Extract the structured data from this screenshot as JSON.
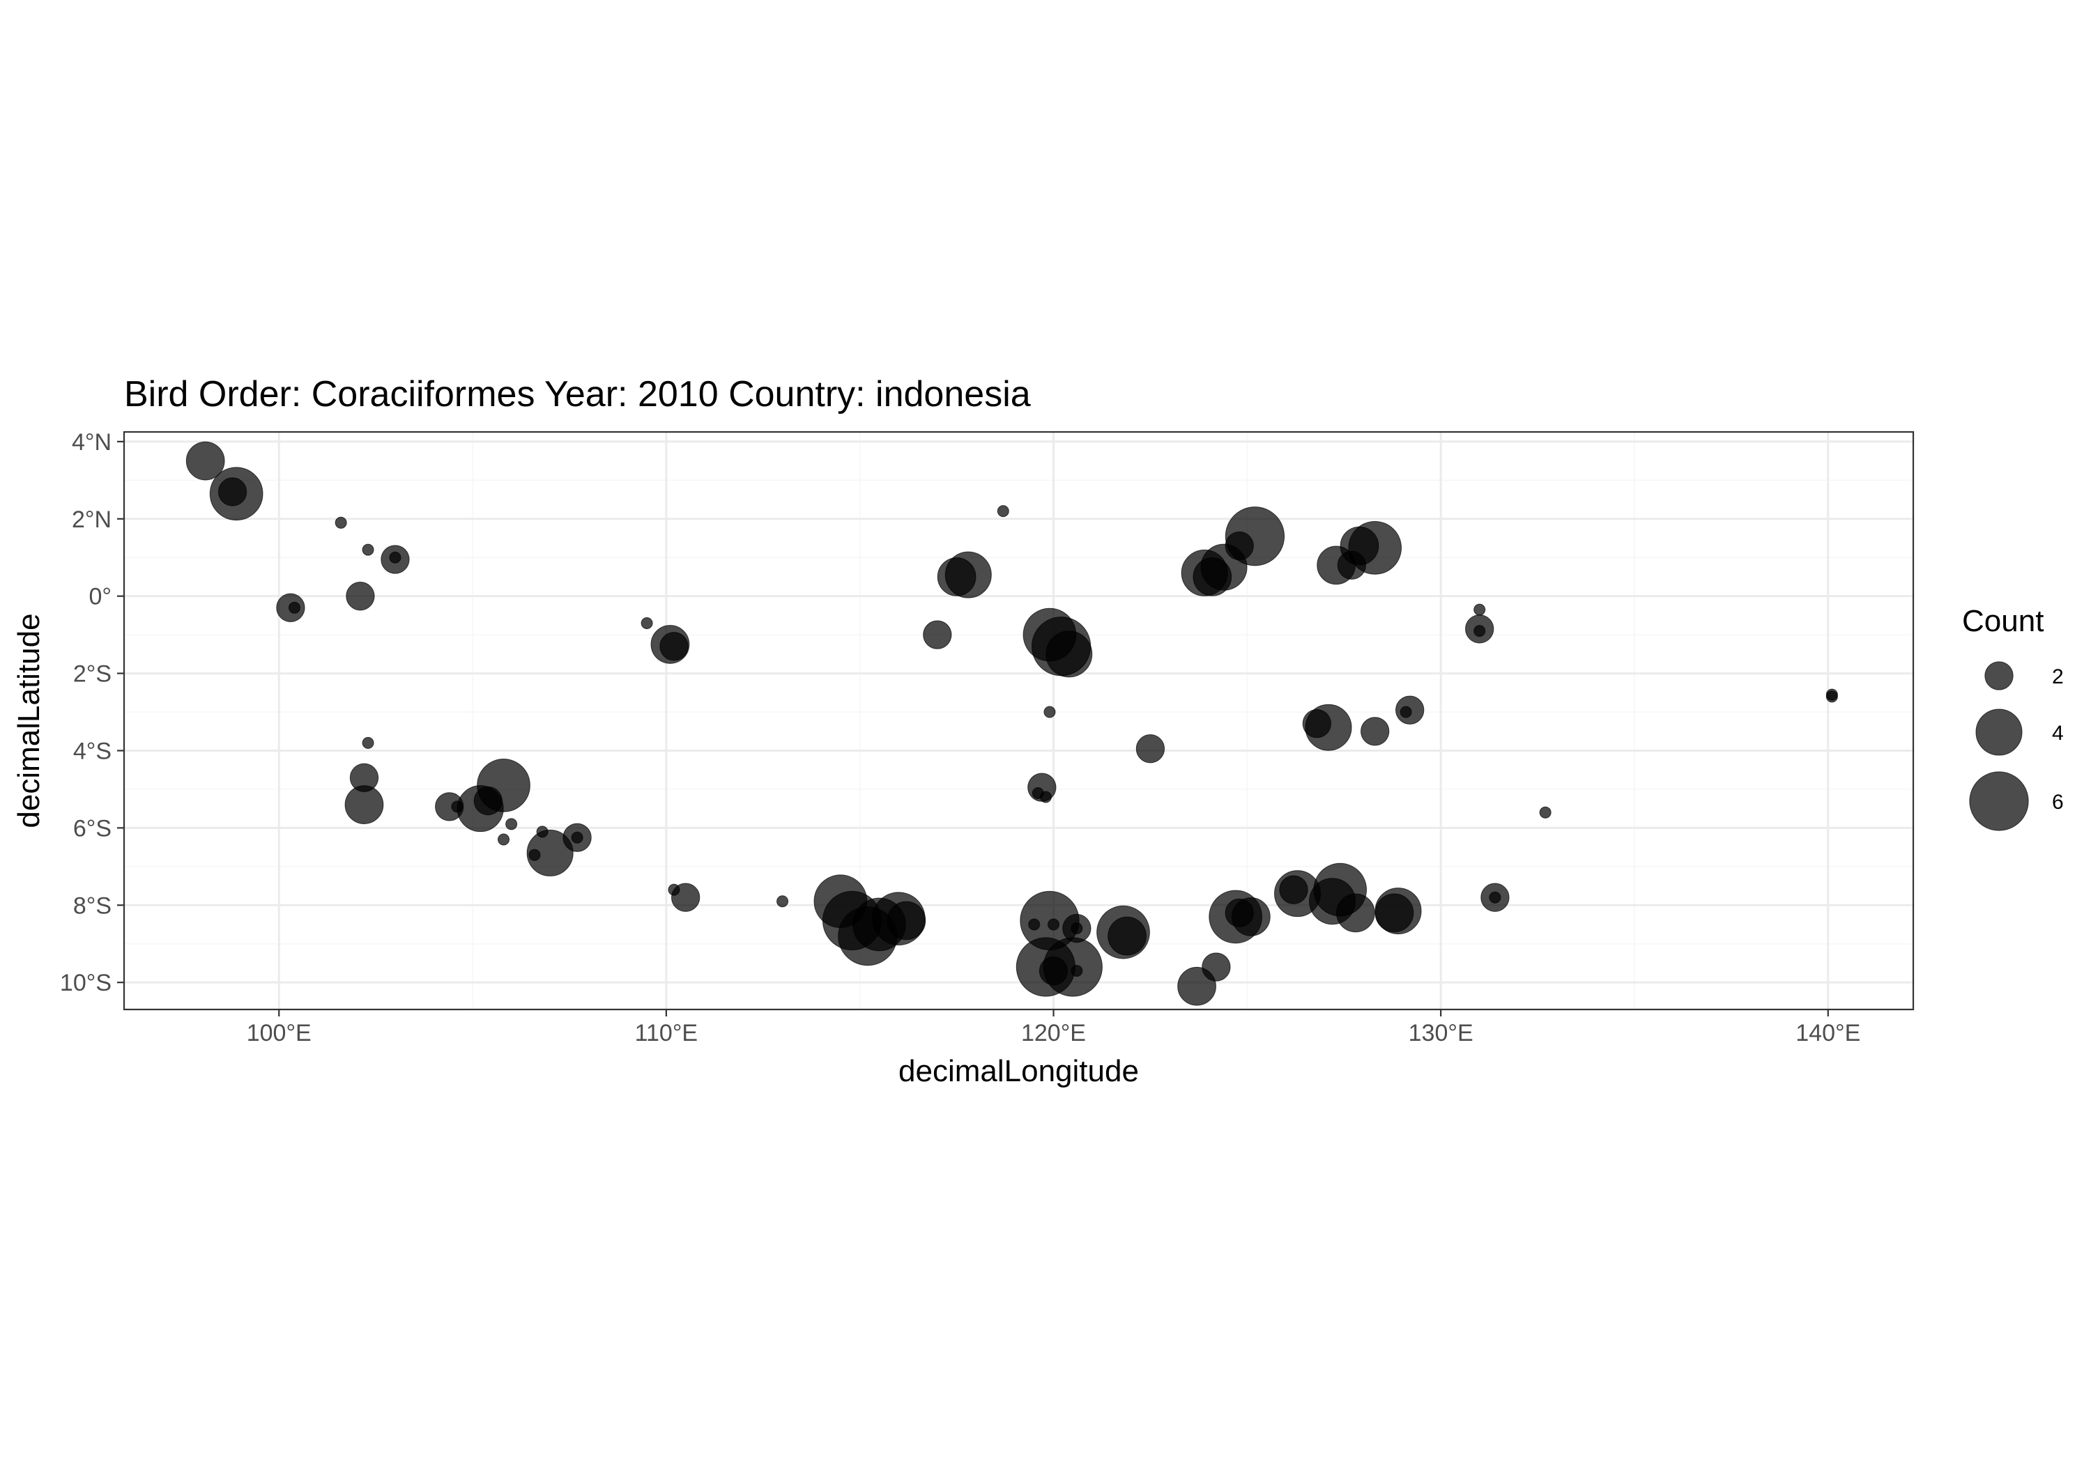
{
  "chart_data": {
    "type": "scatter",
    "title": "Bird Order: Coraciiformes Year: 2010 Country: indonesia",
    "xlabel": "decimalLongitude",
    "ylabel": "decimalLatitude",
    "xlim": [
      96,
      142.2
    ],
    "ylim": [
      -10.7,
      4.25
    ],
    "x_ticks": [
      {
        "value": 100,
        "label": "100°E"
      },
      {
        "value": 110,
        "label": "110°E"
      },
      {
        "value": 120,
        "label": "120°E"
      },
      {
        "value": 130,
        "label": "130°E"
      },
      {
        "value": 140,
        "label": "140°E"
      }
    ],
    "y_ticks": [
      {
        "value": 4,
        "label": "4°N"
      },
      {
        "value": 2,
        "label": "2°N"
      },
      {
        "value": 0,
        "label": "0°"
      },
      {
        "value": -2,
        "label": "2°S"
      },
      {
        "value": -4,
        "label": "4°S"
      },
      {
        "value": -6,
        "label": "6°S"
      },
      {
        "value": -8,
        "label": "8°S"
      },
      {
        "value": -10,
        "label": "10°S"
      }
    ],
    "grid": true,
    "point_color": "#000000",
    "point_opacity": 0.7,
    "legend": {
      "title": "Count",
      "position": "right",
      "entries": [
        {
          "value": 2,
          "label": "2"
        },
        {
          "value": 4,
          "label": "4"
        },
        {
          "value": 6,
          "label": "6"
        }
      ]
    },
    "size_domain": [
      1,
      7
    ],
    "points": [
      {
        "x": 98.1,
        "y": 3.5,
        "count": 3
      },
      {
        "x": 98.9,
        "y": 2.65,
        "count": 5
      },
      {
        "x": 98.8,
        "y": 2.7,
        "count": 2
      },
      {
        "x": 101.6,
        "y": 1.9,
        "count": 1
      },
      {
        "x": 102.3,
        "y": 1.2,
        "count": 1
      },
      {
        "x": 103.0,
        "y": 0.95,
        "count": 2
      },
      {
        "x": 103.0,
        "y": 1.0,
        "count": 1
      },
      {
        "x": 100.3,
        "y": -0.3,
        "count": 2
      },
      {
        "x": 100.4,
        "y": -0.3,
        "count": 1
      },
      {
        "x": 102.1,
        "y": 0.0,
        "count": 2
      },
      {
        "x": 102.3,
        "y": -3.8,
        "count": 1
      },
      {
        "x": 102.2,
        "y": -4.7,
        "count": 2
      },
      {
        "x": 102.2,
        "y": -5.4,
        "count": 3
      },
      {
        "x": 104.4,
        "y": -5.45,
        "count": 2
      },
      {
        "x": 104.6,
        "y": -5.45,
        "count": 1
      },
      {
        "x": 105.2,
        "y": -5.5,
        "count": 4
      },
      {
        "x": 105.4,
        "y": -5.3,
        "count": 2
      },
      {
        "x": 105.8,
        "y": -4.9,
        "count": 5
      },
      {
        "x": 106.0,
        "y": -5.9,
        "count": 1
      },
      {
        "x": 105.8,
        "y": -6.3,
        "count": 1
      },
      {
        "x": 106.6,
        "y": -6.7,
        "count": 1
      },
      {
        "x": 106.8,
        "y": -6.1,
        "count": 1
      },
      {
        "x": 107.0,
        "y": -6.65,
        "count": 4
      },
      {
        "x": 107.7,
        "y": -6.25,
        "count": 2
      },
      {
        "x": 107.7,
        "y": -6.25,
        "count": 1
      },
      {
        "x": 109.5,
        "y": -0.7,
        "count": 1
      },
      {
        "x": 110.1,
        "y": -1.25,
        "count": 3
      },
      {
        "x": 110.2,
        "y": -1.3,
        "count": 2
      },
      {
        "x": 110.2,
        "y": -7.6,
        "count": 1
      },
      {
        "x": 110.5,
        "y": -7.8,
        "count": 2
      },
      {
        "x": 113.0,
        "y": -7.9,
        "count": 1
      },
      {
        "x": 114.5,
        "y": -7.9,
        "count": 5
      },
      {
        "x": 114.8,
        "y": -8.4,
        "count": 6
      },
      {
        "x": 115.2,
        "y": -8.8,
        "count": 6
      },
      {
        "x": 115.5,
        "y": -8.5,
        "count": 5
      },
      {
        "x": 116.0,
        "y": -8.35,
        "count": 5
      },
      {
        "x": 116.2,
        "y": -8.4,
        "count": 3
      },
      {
        "x": 117.0,
        "y": -1.0,
        "count": 2
      },
      {
        "x": 117.5,
        "y": 0.5,
        "count": 3
      },
      {
        "x": 117.8,
        "y": 0.55,
        "count": 4
      },
      {
        "x": 118.7,
        "y": 2.2,
        "count": 1
      },
      {
        "x": 119.9,
        "y": -1.0,
        "count": 5
      },
      {
        "x": 120.2,
        "y": -1.3,
        "count": 6
      },
      {
        "x": 120.4,
        "y": -1.5,
        "count": 4
      },
      {
        "x": 119.9,
        "y": -3.0,
        "count": 1
      },
      {
        "x": 119.7,
        "y": -4.95,
        "count": 2
      },
      {
        "x": 119.6,
        "y": -5.1,
        "count": 1
      },
      {
        "x": 119.8,
        "y": -5.2,
        "count": 1
      },
      {
        "x": 119.9,
        "y": -8.4,
        "count": 6
      },
      {
        "x": 119.5,
        "y": -8.5,
        "count": 1
      },
      {
        "x": 120.0,
        "y": -8.5,
        "count": 1
      },
      {
        "x": 120.6,
        "y": -8.6,
        "count": 2
      },
      {
        "x": 120.6,
        "y": -8.6,
        "count": 1
      },
      {
        "x": 119.8,
        "y": -9.6,
        "count": 6
      },
      {
        "x": 120.5,
        "y": -9.6,
        "count": 6
      },
      {
        "x": 120.0,
        "y": -9.7,
        "count": 2
      },
      {
        "x": 120.6,
        "y": -9.7,
        "count": 1
      },
      {
        "x": 121.8,
        "y": -8.7,
        "count": 5
      },
      {
        "x": 121.9,
        "y": -8.8,
        "count": 3
      },
      {
        "x": 122.5,
        "y": -3.95,
        "count": 2
      },
      {
        "x": 123.7,
        "y": -10.1,
        "count": 3
      },
      {
        "x": 124.2,
        "y": -9.6,
        "count": 2
      },
      {
        "x": 123.9,
        "y": 0.6,
        "count": 4
      },
      {
        "x": 124.1,
        "y": 0.5,
        "count": 3
      },
      {
        "x": 124.4,
        "y": 0.75,
        "count": 4
      },
      {
        "x": 124.8,
        "y": 1.3,
        "count": 2
      },
      {
        "x": 125.2,
        "y": 1.55,
        "count": 6
      },
      {
        "x": 124.7,
        "y": -8.3,
        "count": 5
      },
      {
        "x": 124.8,
        "y": -8.2,
        "count": 2
      },
      {
        "x": 125.1,
        "y": -8.3,
        "count": 3
      },
      {
        "x": 126.3,
        "y": -7.7,
        "count": 4
      },
      {
        "x": 126.2,
        "y": -7.6,
        "count": 2
      },
      {
        "x": 126.8,
        "y": -3.3,
        "count": 2
      },
      {
        "x": 127.1,
        "y": -3.4,
        "count": 4
      },
      {
        "x": 127.3,
        "y": 0.8,
        "count": 3
      },
      {
        "x": 127.7,
        "y": 0.8,
        "count": 2
      },
      {
        "x": 127.9,
        "y": 1.3,
        "count": 3
      },
      {
        "x": 128.3,
        "y": 1.25,
        "count": 5
      },
      {
        "x": 127.2,
        "y": -7.9,
        "count": 4
      },
      {
        "x": 127.4,
        "y": -7.6,
        "count": 5
      },
      {
        "x": 127.8,
        "y": -8.2,
        "count": 3
      },
      {
        "x": 128.3,
        "y": -3.5,
        "count": 2
      },
      {
        "x": 128.9,
        "y": -8.15,
        "count": 4
      },
      {
        "x": 128.8,
        "y": -8.2,
        "count": 3
      },
      {
        "x": 129.2,
        "y": -2.95,
        "count": 2
      },
      {
        "x": 129.1,
        "y": -3.0,
        "count": 1
      },
      {
        "x": 131.0,
        "y": -0.35,
        "count": 1
      },
      {
        "x": 131.0,
        "y": -0.85,
        "count": 2
      },
      {
        "x": 131.0,
        "y": -0.9,
        "count": 1
      },
      {
        "x": 131.4,
        "y": -7.8,
        "count": 2
      },
      {
        "x": 131.4,
        "y": -7.8,
        "count": 1
      },
      {
        "x": 132.7,
        "y": -5.6,
        "count": 1
      },
      {
        "x": 140.1,
        "y": -2.55,
        "count": 1
      },
      {
        "x": 140.1,
        "y": -2.6,
        "count": 1
      }
    ]
  }
}
